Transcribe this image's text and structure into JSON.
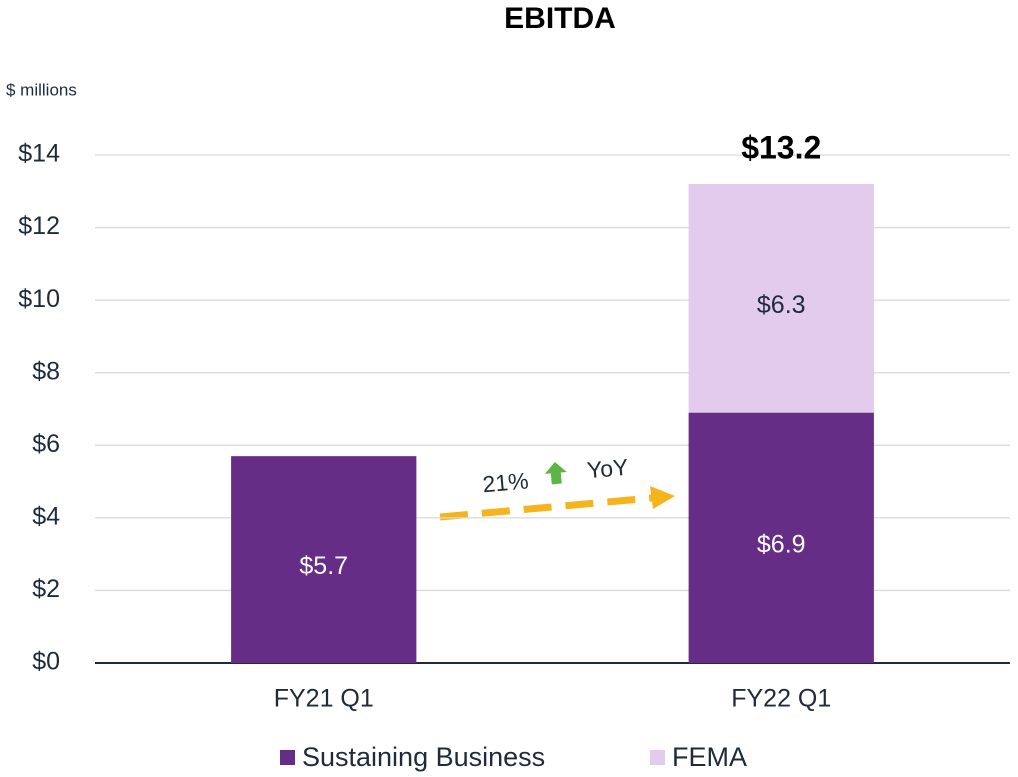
{
  "chart_data": {
    "type": "stacked-bar",
    "title": "EBITDA",
    "y_label": "$ millions",
    "categories": [
      "FY21 Q1",
      "FY22 Q1"
    ],
    "series": [
      {
        "name": "Sustaining Business",
        "color": "#652d86",
        "values": [
          5.7,
          6.9
        ],
        "value_labels": [
          "$5.7",
          "$6.9"
        ]
      },
      {
        "name": "FEMA",
        "color": "#e2cbed",
        "values": [
          null,
          6.3
        ],
        "value_labels": [
          null,
          "$6.3"
        ]
      }
    ],
    "totals": [
      null,
      13.2
    ],
    "total_labels": [
      null,
      "$13.2"
    ],
    "annotations": [
      "21%",
      "YoY"
    ],
    "ylim": [
      0,
      14
    ],
    "yticks": [
      {
        "value": 0,
        "label": "$0"
      },
      {
        "value": 2,
        "label": "$2"
      },
      {
        "value": 4,
        "label": "$4"
      },
      {
        "value": 6,
        "label": "$6"
      },
      {
        "value": 8,
        "label": "$8"
      },
      {
        "value": 10,
        "label": "$10"
      },
      {
        "value": 12,
        "label": "$12"
      },
      {
        "value": 14,
        "label": "$14"
      }
    ],
    "grid": true,
    "legend": "bottom"
  }
}
